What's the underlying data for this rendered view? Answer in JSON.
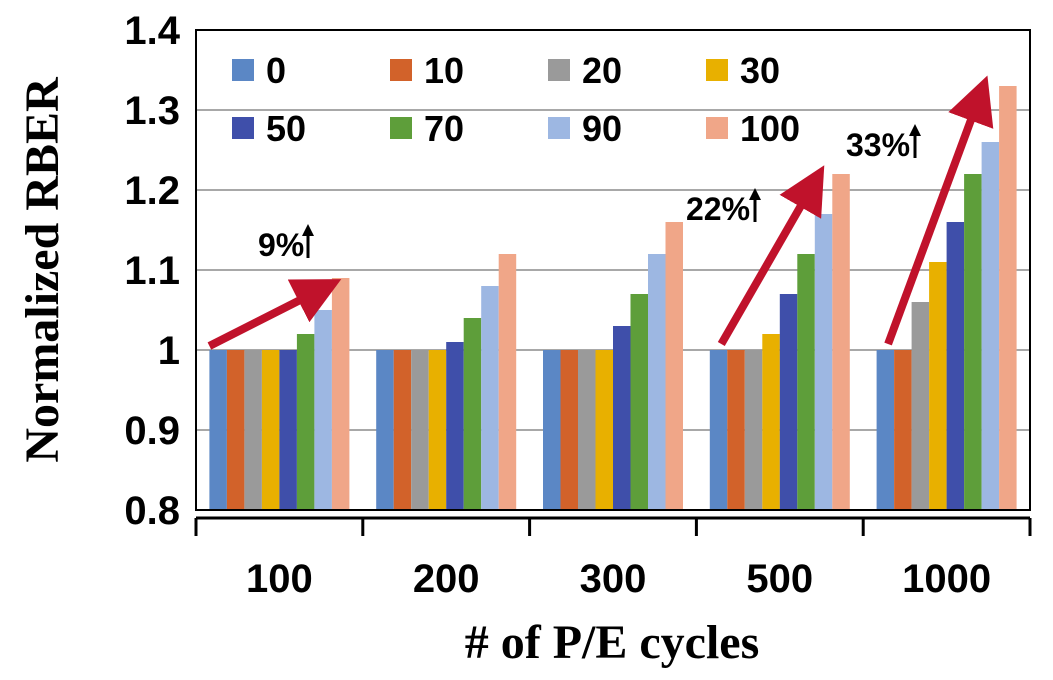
{
  "chart_data": {
    "type": "bar",
    "xlabel": "# of P/E cycles",
    "ylabel": "Normalized RBER",
    "ylim": [
      0.8,
      1.4
    ],
    "yticks": [
      "0.8",
      "0.9",
      "1",
      "1.1",
      "1.2",
      "1.3",
      "1.4"
    ],
    "categories": [
      "100",
      "200",
      "300",
      "500",
      "1000"
    ],
    "grid": true,
    "legend": "top, inside plot, 4 columns",
    "series": [
      {
        "name": "0",
        "color": "#5B87C5",
        "values": [
          1.0,
          1.0,
          1.0,
          1.0,
          1.0
        ]
      },
      {
        "name": "10",
        "color": "#D2622A",
        "values": [
          1.0,
          1.0,
          1.0,
          1.0,
          1.0
        ]
      },
      {
        "name": "20",
        "color": "#9A9A9A",
        "values": [
          1.0,
          1.0,
          1.0,
          1.0,
          1.06
        ]
      },
      {
        "name": "30",
        "color": "#E8B000",
        "values": [
          1.0,
          1.0,
          1.0,
          1.02,
          1.11
        ]
      },
      {
        "name": "50",
        "color": "#3F4FAA",
        "values": [
          1.0,
          1.01,
          1.03,
          1.07,
          1.16
        ]
      },
      {
        "name": "70",
        "color": "#5E9E3A",
        "values": [
          1.02,
          1.04,
          1.07,
          1.12,
          1.22
        ]
      },
      {
        "name": "90",
        "color": "#9DB7E2",
        "values": [
          1.05,
          1.08,
          1.12,
          1.17,
          1.26
        ]
      },
      {
        "name": "100",
        "color": "#F0A688",
        "values": [
          1.09,
          1.12,
          1.16,
          1.22,
          1.33
        ]
      }
    ],
    "annotations": [
      {
        "text": "9%",
        "category": "100"
      },
      {
        "text": "22%",
        "category": "500"
      },
      {
        "text": "33%",
        "category": "1000"
      }
    ],
    "arrow_color": "#C0122B"
  }
}
